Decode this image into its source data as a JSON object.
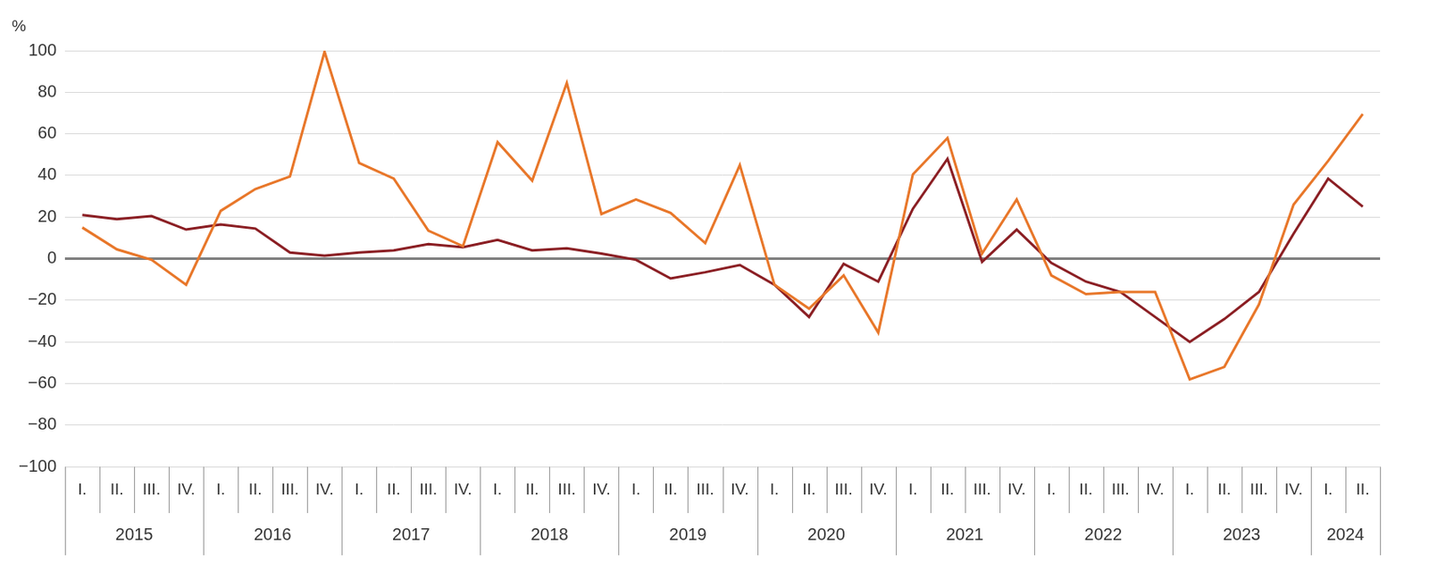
{
  "chart_data": {
    "type": "line",
    "ylabel": "%",
    "categories": [
      "I.",
      "II.",
      "III.",
      "IV.",
      "I.",
      "II.",
      "III.",
      "IV.",
      "I.",
      "II.",
      "III.",
      "IV.",
      "I.",
      "II.",
      "III.",
      "IV.",
      "I.",
      "II.",
      "III.",
      "IV.",
      "I.",
      "II.",
      "III.",
      "IV.",
      "I.",
      "II.",
      "III.",
      "IV.",
      "I.",
      "II.",
      "III.",
      "IV.",
      "I.",
      "II.",
      "III.",
      "IV.",
      "I.",
      "II."
    ],
    "groups": [
      {
        "label": "2015",
        "size": 4
      },
      {
        "label": "2016",
        "size": 4
      },
      {
        "label": "2017",
        "size": 4
      },
      {
        "label": "2018",
        "size": 4
      },
      {
        "label": "2019",
        "size": 4
      },
      {
        "label": "2020",
        "size": 4
      },
      {
        "label": "2021",
        "size": 4
      },
      {
        "label": "2022",
        "size": 4
      },
      {
        "label": "2023",
        "size": 4
      },
      {
        "label": "2024",
        "size": 2
      }
    ],
    "series": [
      {
        "color": "#8b1f24",
        "values": [
          21,
          19,
          20.5,
          14,
          16.5,
          14.5,
          3,
          1.5,
          3,
          4,
          7,
          5.5,
          9,
          4,
          5,
          2.5,
          -0.5,
          -9.5,
          -6.5,
          -3,
          -12.5,
          -28,
          -2.5,
          -11,
          24,
          48,
          -1.5,
          14,
          -2,
          -11,
          -16,
          -28,
          -40,
          -29,
          -16,
          12,
          38.5,
          25
        ]
      },
      {
        "color": "#e8772a",
        "values": [
          15,
          4.5,
          -0.5,
          -12.5,
          23,
          33.5,
          39.5,
          99.5,
          46,
          38.5,
          13.5,
          6,
          56,
          37.5,
          84.5,
          21.5,
          28.5,
          22,
          7.5,
          45,
          -12.5,
          -24,
          -8,
          -35.5,
          40.5,
          58,
          2.5,
          28.5,
          -8,
          -17,
          -16,
          -16,
          -58,
          -52,
          -22,
          26,
          47,
          69.5
        ]
      }
    ],
    "ylim": [
      -100,
      100
    ],
    "yticks": [
      -100,
      -80,
      -60,
      -40,
      -20,
      0,
      20,
      40,
      60,
      80,
      100
    ],
    "grid": true
  }
}
